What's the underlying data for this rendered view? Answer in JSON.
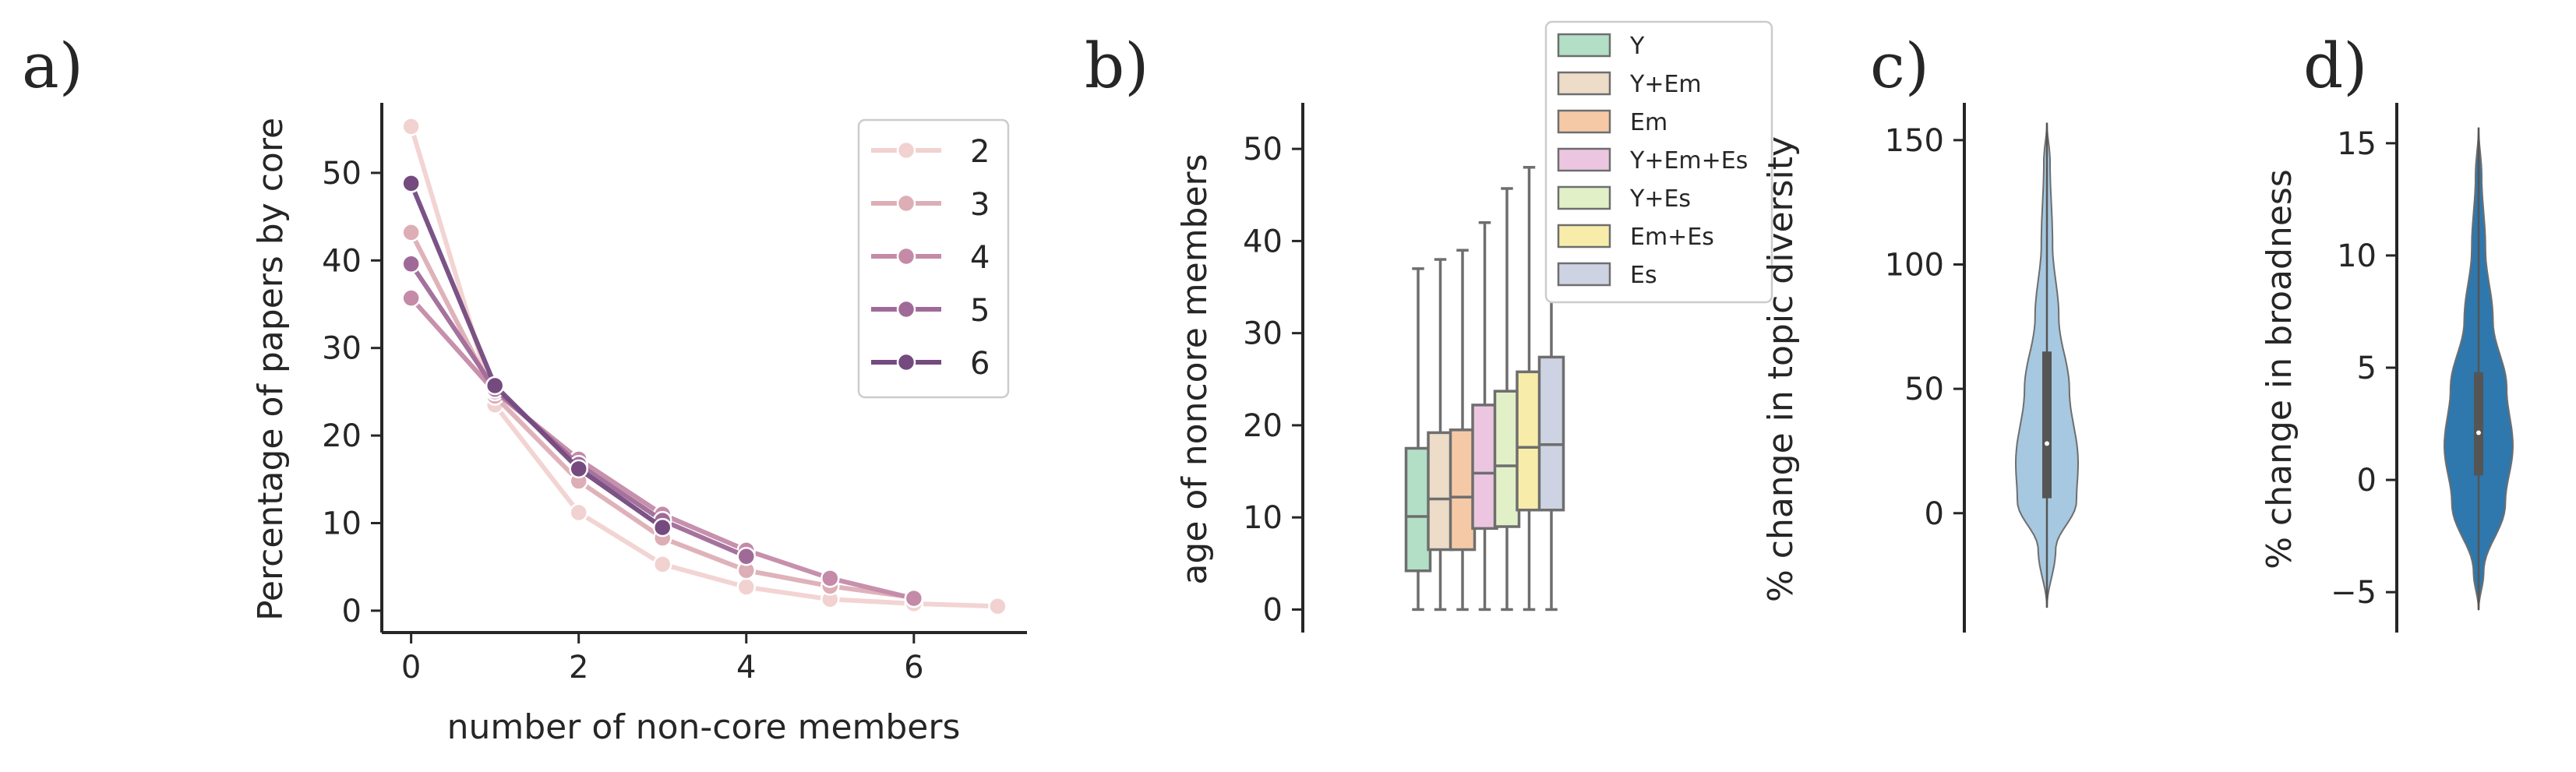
{
  "panels": {
    "a": "a)",
    "b": "b)",
    "c": "c)",
    "d": "d)"
  },
  "chart_data": [
    {
      "type": "line",
      "xlabel": "number of non-core members",
      "ylabel": "Percentage of papers by core",
      "xlim": [
        -0.35,
        7.35
      ],
      "ylim": [
        -2.5,
        58
      ],
      "xticks": [
        0,
        2,
        4,
        6
      ],
      "yticks": [
        0,
        10,
        20,
        30,
        40,
        50
      ],
      "legend_position": "top-right",
      "series": [
        {
          "name": "2",
          "color": "#f1d2d0",
          "x": [
            0,
            1,
            2,
            3,
            4,
            5,
            6,
            7
          ],
          "y": [
            55.3,
            23.5,
            11.2,
            5.3,
            2.7,
            1.3,
            0.8,
            0.5
          ]
        },
        {
          "name": "3",
          "color": "#ddaeb6",
          "x": [
            0,
            1,
            2,
            3,
            4,
            5,
            6
          ],
          "y": [
            43.2,
            24.5,
            14.8,
            8.3,
            4.6,
            2.8,
            1.5
          ]
        },
        {
          "name": "4",
          "color": "#c48aa8",
          "x": [
            0,
            1,
            2,
            3,
            4,
            5,
            6
          ],
          "y": [
            35.7,
            25.0,
            17.3,
            11.0,
            6.9,
            3.7,
            1.4
          ]
        },
        {
          "name": "5",
          "color": "#a06a98",
          "x": [
            0,
            1,
            2,
            3,
            4
          ],
          "y": [
            39.6,
            25.3,
            16.7,
            10.3,
            6.2
          ]
        },
        {
          "name": "6",
          "color": "#744a7f",
          "x": [
            0,
            1,
            2,
            3
          ],
          "y": [
            48.8,
            25.7,
            16.2,
            9.5
          ]
        }
      ]
    },
    {
      "type": "box",
      "ylabel": "age of noncore members",
      "ylim": [
        -2.5,
        55
      ],
      "yticks": [
        0,
        10,
        20,
        30,
        40,
        50
      ],
      "legend_position": "top-right",
      "series": [
        {
          "name": "Y",
          "color": "#b2dfc6",
          "q1": 4.2,
          "median": 10.1,
          "q3": 17.5,
          "whisker_low": 0,
          "whisker_high": 37.0
        },
        {
          "name": "Y+Em",
          "color": "#ecdcc8",
          "q1": 6.5,
          "median": 12.0,
          "q3": 19.2,
          "whisker_low": 0,
          "whisker_high": 38.0
        },
        {
          "name": "Em",
          "color": "#f6c9a6",
          "q1": 6.5,
          "median": 12.2,
          "q3": 19.5,
          "whisker_low": 0,
          "whisker_high": 39.0
        },
        {
          "name": "Y+Em+Es",
          "color": "#ecc6e0",
          "q1": 8.8,
          "median": 14.8,
          "q3": 22.2,
          "whisker_low": 0,
          "whisker_high": 42.0
        },
        {
          "name": "Y+Es",
          "color": "#e2f0c8",
          "q1": 9.0,
          "median": 15.6,
          "q3": 23.7,
          "whisker_low": 0,
          "whisker_high": 45.7
        },
        {
          "name": "Em+Es",
          "color": "#f8ecaa",
          "q1": 10.8,
          "median": 17.6,
          "q3": 25.8,
          "whisker_low": 0,
          "whisker_high": 48.0
        },
        {
          "name": "Es",
          "color": "#cdd3e2",
          "q1": 10.8,
          "median": 17.9,
          "q3": 27.4,
          "whisker_low": 0,
          "whisker_high": 52.0
        }
      ]
    },
    {
      "type": "violin",
      "ylabel": "% change in topic diversity",
      "ylim": [
        -48,
        165
      ],
      "yticks": [
        0,
        50,
        100,
        150
      ],
      "color": "#a6c8e0",
      "min": -38,
      "max": 157,
      "q1": 6,
      "median": 28,
      "q3": 65
    },
    {
      "type": "violin",
      "ylabel": "% change in broadness",
      "ylim": [
        -6.8,
        16.8
      ],
      "yticks": [
        -5,
        0,
        5,
        10,
        15
      ],
      "color": "#2e78ae",
      "min": -5.8,
      "max": 15.7,
      "q1": 0.2,
      "median": 2.1,
      "q3": 4.8
    }
  ]
}
